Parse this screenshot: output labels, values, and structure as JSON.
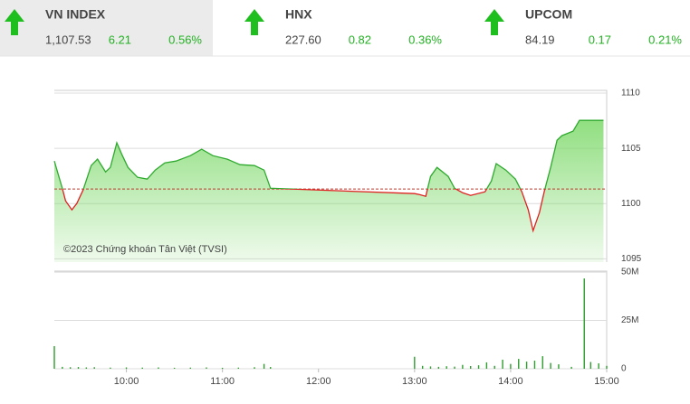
{
  "indices": [
    {
      "name": "VN INDEX",
      "value": "1,107.53",
      "change": "6.21",
      "percent": "0.56%"
    },
    {
      "name": "HNX",
      "value": "227.60",
      "change": "0.82",
      "percent": "0.36%"
    },
    {
      "name": "UPCOM",
      "value": "84.19",
      "change": "0.17",
      "percent": "0.21%"
    }
  ],
  "chart_data": [
    {
      "type": "line",
      "watermark": "©2023 Chứng khoán Tân Việt (TVSI)",
      "x": [
        555,
        557,
        560,
        562,
        566,
        569,
        573,
        578,
        582,
        587,
        590,
        594,
        597,
        601,
        607,
        613,
        618,
        624,
        631,
        640,
        647,
        654,
        663,
        671,
        680,
        686,
        690,
        780,
        783,
        787,
        790,
        794,
        801,
        805,
        810,
        815,
        824,
        828,
        831,
        837,
        843,
        847,
        851,
        854,
        858,
        861,
        865,
        869,
        872,
        879,
        883,
        898
      ],
      "values": [
        1103.85,
        1102.87,
        1101.39,
        1100.25,
        1099.43,
        1100.0,
        1101.23,
        1103.44,
        1104.02,
        1102.87,
        1103.28,
        1105.5,
        1104.5,
        1103.28,
        1102.38,
        1102.21,
        1103.03,
        1103.69,
        1103.85,
        1104.34,
        1104.92,
        1104.34,
        1104.02,
        1103.52,
        1103.44,
        1103.03,
        1101.39,
        1100.9,
        1100.82,
        1100.66,
        1102.46,
        1103.28,
        1102.46,
        1101.39,
        1100.98,
        1100.74,
        1101.07,
        1102.05,
        1103.61,
        1103.03,
        1102.21,
        1101.07,
        1099.43,
        1097.54,
        1099.18,
        1101.07,
        1103.28,
        1105.74,
        1106.15,
        1106.56,
        1107.53,
        1107.53
      ],
      "color": "#2eaa2e",
      "down_color": "#e02020",
      "area_color": "#7dd96a",
      "reference": 1101.32,
      "reference_color": "#c0392b",
      "xlim": [
        555,
        900
      ],
      "ylim": [
        1094.7,
        1110.25
      ],
      "yticks": [
        1095,
        1100,
        1105,
        1110
      ],
      "grid": true
    },
    {
      "type": "bar",
      "x": [
        555,
        560,
        565,
        570,
        575,
        580,
        590,
        600,
        610,
        620,
        630,
        640,
        650,
        660,
        670,
        680,
        686,
        690,
        780,
        785,
        790,
        795,
        800,
        805,
        810,
        815,
        820,
        825,
        830,
        835,
        840,
        845,
        850,
        855,
        860,
        865,
        870,
        878,
        886,
        890,
        895,
        900
      ],
      "values": [
        11.7,
        1.0,
        0.8,
        0.9,
        0.7,
        0.8,
        0.6,
        0.7,
        0.6,
        0.7,
        0.5,
        0.6,
        0.7,
        0.5,
        0.6,
        0.8,
        2.5,
        0.9,
        6.2,
        1.5,
        1.2,
        1.0,
        1.3,
        1.1,
        2.0,
        1.4,
        1.8,
        3.3,
        1.5,
        4.7,
        2.5,
        5.1,
        3.7,
        4.2,
        6.5,
        3.0,
        2.3,
        1.0,
        46.7,
        3.5,
        2.8,
        1.5
      ],
      "color": "#2e9e2e",
      "xlim": [
        555,
        900
      ],
      "ylim": [
        0,
        50.5
      ],
      "yticks": [
        0,
        {
          "value": 25,
          "label": "25M"
        },
        {
          "value": 50,
          "label": "50M"
        }
      ],
      "xticks": [
        {
          "value": 600,
          "label": "10:00"
        },
        {
          "value": 660,
          "label": "11:00"
        },
        {
          "value": 720,
          "label": "12:00"
        },
        {
          "value": 780,
          "label": "13:00"
        },
        {
          "value": 840,
          "label": "14:00"
        },
        {
          "value": 900,
          "label": "15:00"
        }
      ],
      "grid": true
    }
  ]
}
